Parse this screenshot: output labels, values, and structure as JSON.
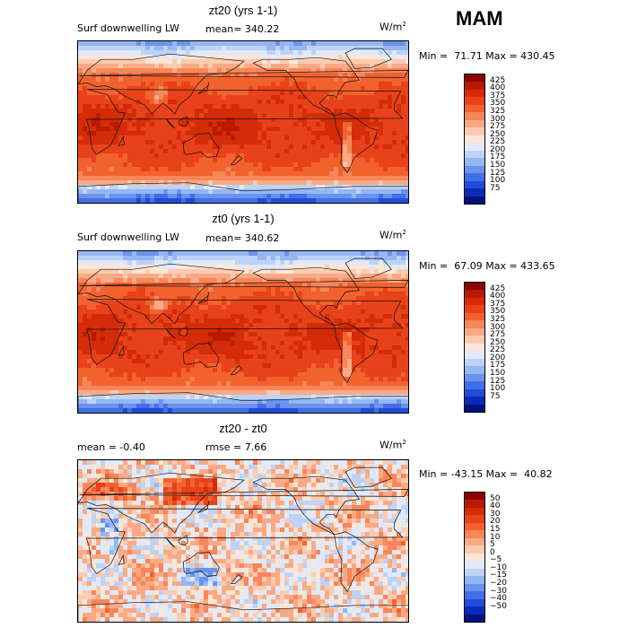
{
  "season": "MAM",
  "panels": [
    {
      "title": "zt20 (yrs 1-1)",
      "left_text": "Surf downwelling LW",
      "mean_text": "mean= 340.22",
      "units_base": "W/m",
      "units_exp": "2",
      "minmax": "Min =  71.71 Max = 430.45",
      "type": "abs"
    },
    {
      "title": "zt0 (yrs 1-1)",
      "left_text": "Surf downwelling LW",
      "mean_text": "mean= 340.62",
      "units_base": "W/m",
      "units_exp": "2",
      "minmax": "Min =  67.09 Max = 433.65",
      "type": "abs"
    },
    {
      "title": "zt20 - zt0",
      "left_text": "mean =   -0.40",
      "mean_text": "rmse =    7.66",
      "units_base": "W/m",
      "units_exp": "2",
      "minmax": "Min = -43.15 Max =  40.82",
      "type": "diff"
    }
  ],
  "colorbars": {
    "abs": {
      "labels": [
        "425",
        "400",
        "375",
        "350",
        "325",
        "300",
        "275",
        "250",
        "225",
        "200",
        "175",
        "150",
        "125",
        "100",
        "75"
      ],
      "colors": [
        "#8b0000",
        "#b81b00",
        "#d42c08",
        "#e8421a",
        "#f2622e",
        "#f7865a",
        "#f9aa85",
        "#fbcbb0",
        "#fbe6d8",
        "#dfe9f9",
        "#bcd3f7",
        "#95b6f2",
        "#6a93ec",
        "#426fe6",
        "#1f4cd9",
        "#0a2ab8",
        "#001180"
      ]
    },
    "diff": {
      "labels": [
        "50",
        "40",
        "30",
        "20",
        "15",
        "10",
        "5",
        "0",
        "−5",
        "−10",
        "−15",
        "−20",
        "−30",
        "−40",
        "−50"
      ],
      "colors": [
        "#8b0000",
        "#b81b00",
        "#d42c08",
        "#e8421a",
        "#f2622e",
        "#f7865a",
        "#f9aa85",
        "#fbcbb0",
        "#fbe6d8",
        "#dfe9f9",
        "#bcd3f7",
        "#95b6f2",
        "#6a93ec",
        "#426fe6",
        "#1f4cd9",
        "#0a2ab8",
        "#001180"
      ]
    }
  }
}
